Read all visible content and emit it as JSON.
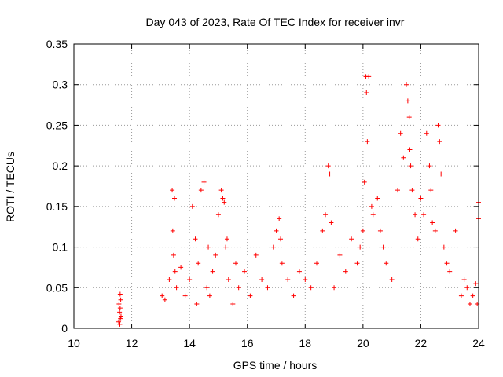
{
  "chart_data": {
    "type": "scatter",
    "title": "Day 043 of 2023, Rate Of TEC Index for receiver invr",
    "xlabel": "GPS time / hours",
    "ylabel": "ROTI / TECUs",
    "xlim": [
      10,
      24
    ],
    "ylim": [
      0,
      0.35
    ],
    "grid": true,
    "marker": "+",
    "x_ticks": [
      10,
      12,
      14,
      16,
      18,
      20,
      22,
      24
    ],
    "x_tick_labels": [
      "10",
      "12",
      "14",
      "16",
      "18",
      "20",
      "22",
      "24"
    ],
    "y_ticks": [
      0,
      0.05,
      0.1,
      0.15,
      0.2,
      0.25,
      0.3,
      0.35
    ],
    "y_tick_labels": [
      "0",
      "0.05",
      "0.1",
      "0.15",
      "0.2",
      "0.25",
      "0.3",
      "0.35"
    ],
    "series": [
      {
        "name": "ROTI",
        "color": "#ff0000",
        "x": [
          11.55,
          11.58,
          11.6,
          11.62,
          11.57,
          11.6,
          11.63,
          11.56,
          11.59,
          11.61,
          13.05,
          13.15,
          13.3,
          13.4,
          13.42,
          13.45,
          13.48,
          13.5,
          13.55,
          13.7,
          13.85,
          14.0,
          14.1,
          14.2,
          14.25,
          14.3,
          14.4,
          14.5,
          14.6,
          14.65,
          14.7,
          14.8,
          14.9,
          15.0,
          15.1,
          15.15,
          15.2,
          15.25,
          15.3,
          15.35,
          15.5,
          15.6,
          15.7,
          15.9,
          16.1,
          16.3,
          16.5,
          16.7,
          16.9,
          17.0,
          17.1,
          17.15,
          17.2,
          17.4,
          17.6,
          17.8,
          18.0,
          18.2,
          18.4,
          18.6,
          18.7,
          18.8,
          18.85,
          18.9,
          19.0,
          19.2,
          19.4,
          19.6,
          19.8,
          19.9,
          20.0,
          20.05,
          20.1,
          20.12,
          20.15,
          20.2,
          20.3,
          20.35,
          20.5,
          20.6,
          20.7,
          20.8,
          21.0,
          21.2,
          21.3,
          21.4,
          21.5,
          21.55,
          21.6,
          21.62,
          21.65,
          21.7,
          21.8,
          21.9,
          22.0,
          22.1,
          22.2,
          22.3,
          22.35,
          22.4,
          22.5,
          22.6,
          22.65,
          22.7,
          22.8,
          22.9,
          23.0,
          23.2,
          23.4,
          23.5,
          23.6,
          23.7,
          23.8,
          23.9,
          23.95,
          24.0,
          24.0
        ],
        "y": [
          0.008,
          0.02,
          0.042,
          0.035,
          0.01,
          0.025,
          0.015,
          0.03,
          0.005,
          0.012,
          0.04,
          0.035,
          0.06,
          0.17,
          0.12,
          0.09,
          0.16,
          0.07,
          0.05,
          0.075,
          0.04,
          0.06,
          0.15,
          0.11,
          0.03,
          0.08,
          0.17,
          0.18,
          0.05,
          0.1,
          0.04,
          0.07,
          0.09,
          0.14,
          0.17,
          0.16,
          0.155,
          0.1,
          0.11,
          0.06,
          0.03,
          0.08,
          0.05,
          0.07,
          0.04,
          0.09,
          0.06,
          0.05,
          0.1,
          0.12,
          0.135,
          0.11,
          0.08,
          0.06,
          0.04,
          0.07,
          0.06,
          0.05,
          0.08,
          0.12,
          0.14,
          0.2,
          0.19,
          0.13,
          0.05,
          0.09,
          0.07,
          0.11,
          0.08,
          0.1,
          0.12,
          0.18,
          0.31,
          0.29,
          0.23,
          0.31,
          0.15,
          0.14,
          0.16,
          0.12,
          0.1,
          0.08,
          0.06,
          0.17,
          0.24,
          0.21,
          0.3,
          0.28,
          0.26,
          0.22,
          0.2,
          0.17,
          0.14,
          0.11,
          0.16,
          0.14,
          0.24,
          0.2,
          0.17,
          0.13,
          0.12,
          0.25,
          0.23,
          0.19,
          0.1,
          0.08,
          0.07,
          0.12,
          0.04,
          0.06,
          0.05,
          0.03,
          0.04,
          0.055,
          0.03,
          0.155,
          0.135
        ]
      }
    ]
  }
}
